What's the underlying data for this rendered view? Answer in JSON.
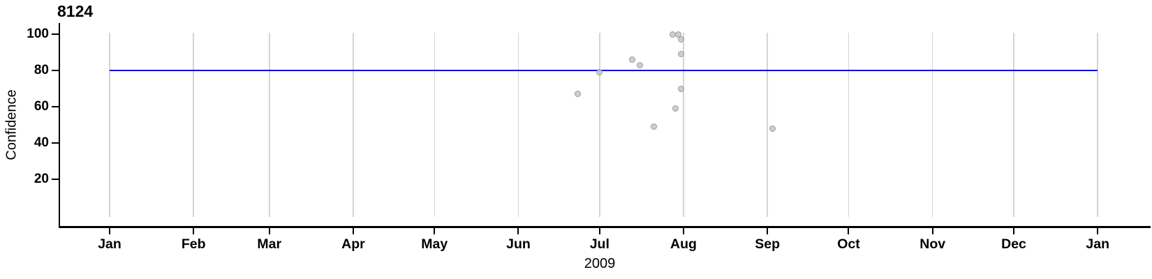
{
  "chart_data": {
    "type": "scatter",
    "title": "8124",
    "ylabel": "Confidence",
    "xlabel": "2009",
    "x_axis": {
      "tick_labels": [
        "Jan",
        "Feb",
        "Mar",
        "Apr",
        "May",
        "Jun",
        "Jul",
        "Aug",
        "Sep",
        "Oct",
        "Nov",
        "Dec",
        "Jan"
      ],
      "start": "2009-01-01",
      "end": "2010-01-01",
      "grid": "vertical line at each month start"
    },
    "y_axis": {
      "tick_labels": [
        "20",
        "40",
        "60",
        "80",
        "100"
      ],
      "tick_values": [
        20,
        40,
        60,
        80,
        100
      ],
      "ylim": [
        -6,
        106
      ]
    },
    "reference_line": {
      "y": 80,
      "color": "#0000dd",
      "span": [
        "2009-01-01",
        "2010-01-01"
      ]
    },
    "points": [
      {
        "date": "2009-06-23",
        "confidence": 67
      },
      {
        "date": "2009-07-01",
        "confidence": 79
      },
      {
        "date": "2009-07-13",
        "confidence": 86
      },
      {
        "date": "2009-07-16",
        "confidence": 83
      },
      {
        "date": "2009-07-21",
        "confidence": 49
      },
      {
        "date": "2009-07-28",
        "confidence": 100
      },
      {
        "date": "2009-07-29",
        "confidence": 59
      },
      {
        "date": "2009-07-30",
        "confidence": 100
      },
      {
        "date": "2009-07-31",
        "confidence": 97
      },
      {
        "date": "2009-07-31",
        "confidence": 89
      },
      {
        "date": "2009-07-31",
        "confidence": 70
      },
      {
        "date": "2009-09-03",
        "confidence": 48
      }
    ],
    "style": {
      "point_fill": "#c6c6c6",
      "point_stroke": "#9b9b9b",
      "point_opacity": 0.85,
      "grid_color": "#d4d4d4",
      "axis_color": "#000000",
      "reference_line_color": "#0000dd",
      "legend": "none"
    }
  }
}
